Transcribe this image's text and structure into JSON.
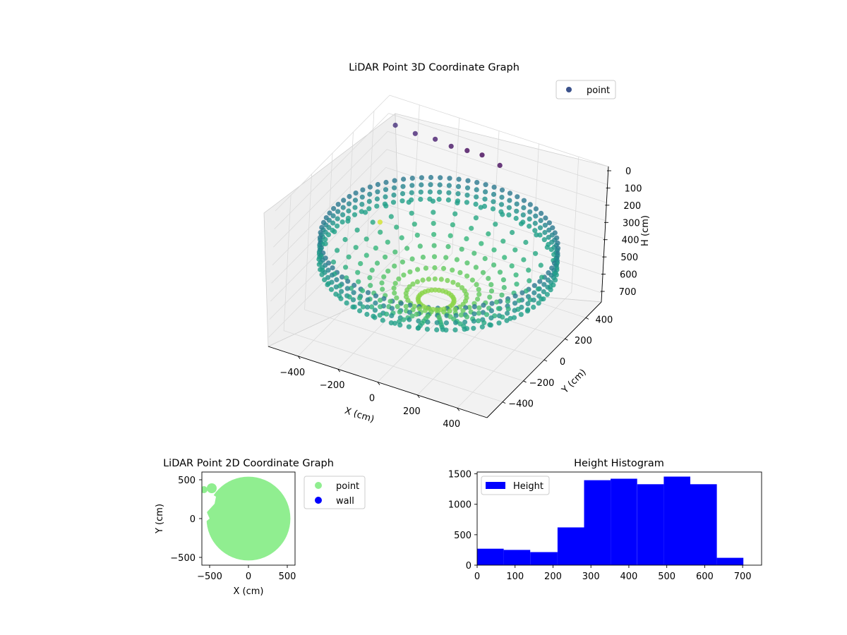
{
  "chart_data": [
    {
      "type": "scatter",
      "dimensions": 3,
      "title": "LiDAR Point 3D Coordinate Graph",
      "xlabel": "X (cm)",
      "ylabel": "Y (cm)",
      "zlabel": "H (cm)",
      "x_ticks": [
        "−400",
        "−200",
        "0",
        "200",
        "400"
      ],
      "y_ticks": [
        "−400",
        "−200",
        "0",
        "200",
        "400"
      ],
      "z_ticks": [
        "0",
        "100",
        "200",
        "300",
        "400",
        "500",
        "600",
        "700"
      ],
      "xlim": [
        -550,
        550
      ],
      "ylim": [
        -550,
        550
      ],
      "zlim": [
        0,
        750
      ],
      "z_inverted": true,
      "colormap": "viridis",
      "legend": {
        "position": "top-right",
        "entries": [
          {
            "label": "point",
            "color": "#3b528b"
          }
        ]
      },
      "grid": true,
      "description_of_shape": "ring of points at radius ~530 cm with a wall sector in the far corner; H rises toward the center",
      "series": [
        {
          "name": "point",
          "ring_radius": 530,
          "ring_h_range": [
            300,
            420
          ],
          "center_h": 650,
          "wall_points": [
            {
              "x": -480,
              "y": 480,
              "h": 100
            },
            {
              "x": -360,
              "y": 440,
              "h": 80
            },
            {
              "x": -250,
              "y": 420,
              "h": 60
            },
            {
              "x": -150,
              "y": 380,
              "h": 40
            },
            {
              "x": -60,
              "y": 360,
              "h": 20
            },
            {
              "x": 20,
              "y": 350,
              "h": 10
            },
            {
              "x": 120,
              "y": 330,
              "h": 20
            }
          ],
          "outlier": {
            "x": -560,
            "y": 540,
            "h": 700
          }
        }
      ]
    },
    {
      "type": "scatter",
      "title": "LiDAR Point 2D Coordinate Graph",
      "xlabel": "X (cm)",
      "ylabel": "Y (cm)",
      "x_ticks": [
        "−500",
        "0",
        "500"
      ],
      "y_ticks": [
        "500",
        "0",
        "−500"
      ],
      "xlim": [
        -600,
        600
      ],
      "ylim": [
        -600,
        600
      ],
      "legend": {
        "position": "outside-right",
        "entries": [
          {
            "label": "point",
            "color": "#90ee90"
          },
          {
            "label": "wall",
            "color": "#0000ff"
          }
        ]
      },
      "series": [
        {
          "name": "point",
          "color": "#90ee90",
          "shape": "disc",
          "center": [
            0,
            0
          ],
          "radius": 540
        },
        {
          "name": "wall",
          "color": "#0000ff",
          "points": []
        }
      ]
    },
    {
      "type": "bar",
      "title": "Height Histogram",
      "x_ticks": [
        "0",
        "100",
        "200",
        "300",
        "400",
        "500",
        "600",
        "700"
      ],
      "y_ticks": [
        "0",
        "500",
        "1000",
        "1500"
      ],
      "xlim": [
        0,
        750
      ],
      "ylim": [
        0,
        1530
      ],
      "bar_color": "#0000ff",
      "legend": {
        "position": "top-left",
        "entries": [
          {
            "label": "Height",
            "color": "#0000ff"
          }
        ]
      },
      "bins": [
        {
          "start": 0,
          "end": 70,
          "value": 270
        },
        {
          "start": 70,
          "end": 140,
          "value": 250
        },
        {
          "start": 140,
          "end": 212,
          "value": 215
        },
        {
          "start": 212,
          "end": 282,
          "value": 620
        },
        {
          "start": 282,
          "end": 352,
          "value": 1395
        },
        {
          "start": 352,
          "end": 422,
          "value": 1420
        },
        {
          "start": 422,
          "end": 492,
          "value": 1330
        },
        {
          "start": 492,
          "end": 562,
          "value": 1455
        },
        {
          "start": 562,
          "end": 632,
          "value": 1330
        },
        {
          "start": 632,
          "end": 702,
          "value": 120
        }
      ]
    }
  ]
}
